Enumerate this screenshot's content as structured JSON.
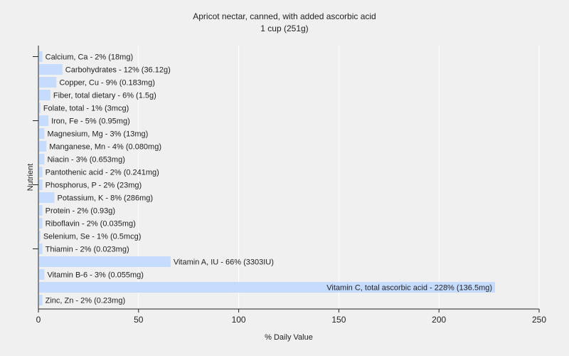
{
  "chart_data": {
    "type": "bar",
    "orientation": "horizontal",
    "title": "Apricot nectar, canned, with added ascorbic acid",
    "subtitle": "1 cup (251g)",
    "xlabel": "% Daily Value",
    "ylabel": "Nutrient",
    "xlim": [
      0,
      250
    ],
    "xticks": [
      0,
      50,
      100,
      150,
      200,
      250
    ],
    "grid": true,
    "bar_color": "#c6dcff",
    "categories": [
      "Calcium, Ca",
      "Carbohydrates",
      "Copper, Cu",
      "Fiber, total dietary",
      "Folate, total",
      "Iron, Fe",
      "Magnesium, Mg",
      "Manganese, Mn",
      "Niacin",
      "Pantothenic acid",
      "Phosphorus, P",
      "Potassium, K",
      "Protein",
      "Riboflavin",
      "Selenium, Se",
      "Thiamin",
      "Vitamin A, IU",
      "Vitamin B-6",
      "Vitamin C, total ascorbic acid",
      "Zinc, Zn"
    ],
    "values": [
      2,
      12,
      9,
      6,
      1,
      5,
      3,
      4,
      3,
      2,
      2,
      8,
      2,
      2,
      1,
      2,
      66,
      3,
      228,
      2
    ],
    "labels": [
      "Calcium, Ca - 2% (18mg)",
      "Carbohydrates - 12% (36.12g)",
      "Copper, Cu - 9% (0.183mg)",
      "Fiber, total dietary - 6% (1.5g)",
      "Folate, total - 1% (3mcg)",
      "Iron, Fe - 5% (0.95mg)",
      "Magnesium, Mg - 3% (13mg)",
      "Manganese, Mn - 4% (0.080mg)",
      "Niacin - 3% (0.653mg)",
      "Pantothenic acid - 2% (0.241mg)",
      "Phosphorus, P - 2% (23mg)",
      "Potassium, K - 8% (286mg)",
      "Protein - 2% (0.93g)",
      "Riboflavin - 2% (0.035mg)",
      "Selenium, Se - 1% (0.5mcg)",
      "Thiamin - 2% (0.023mg)",
      "Vitamin A, IU - 66% (3303IU)",
      "Vitamin B-6 - 3% (0.055mg)",
      "Vitamin C, total ascorbic acid - 228% (136.5mg)",
      "Zinc, Zn - 2% (0.23mg)"
    ]
  }
}
